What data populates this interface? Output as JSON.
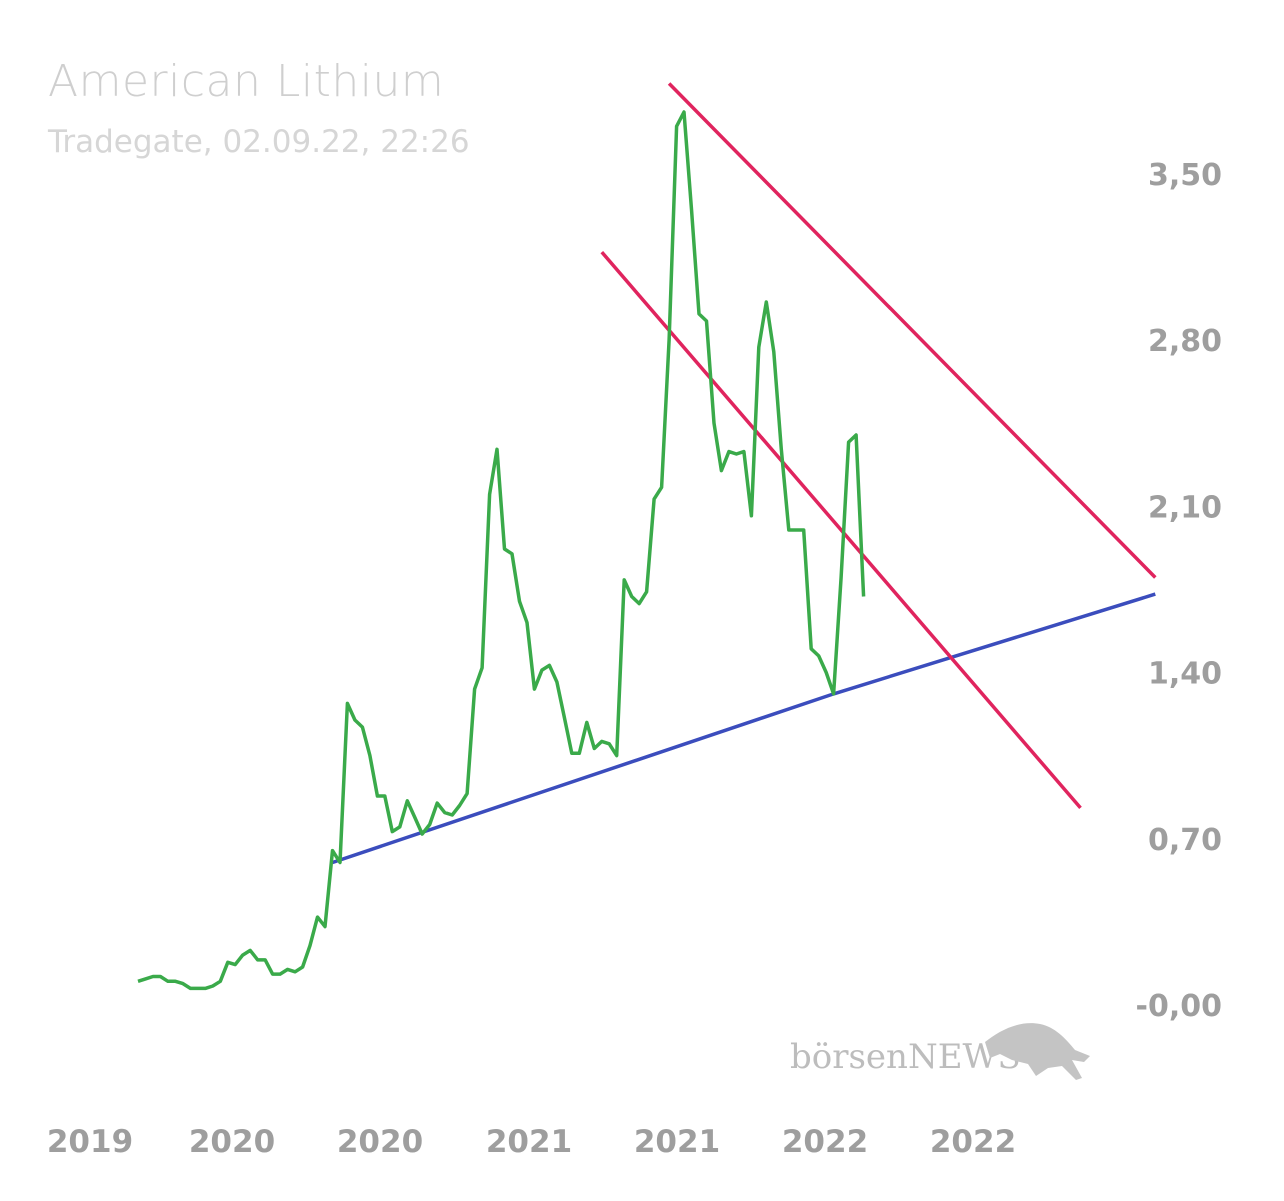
{
  "chart_data": {
    "type": "line",
    "title": "American Lithium",
    "subtitle": "Tradegate, 02.09.22, 22:26",
    "x_tick_labels": [
      "2019",
      "2020",
      "2020",
      "2021",
      "2021",
      "2022",
      "2022"
    ],
    "y_tick_labels": [
      "3,50",
      "2,80",
      "2,10",
      "1,40",
      "0,70",
      "-0,00"
    ],
    "y_tick_values": [
      3.5,
      2.8,
      2.1,
      1.4,
      0.7,
      0.0
    ],
    "ylim": [
      -0.3,
      4.0
    ],
    "series": [
      {
        "name": "American Lithium",
        "color": "#3aaa4a",
        "values": [
          0.1,
          0.11,
          0.12,
          0.12,
          0.1,
          0.1,
          0.09,
          0.07,
          0.07,
          0.07,
          0.08,
          0.1,
          0.18,
          0.17,
          0.21,
          0.23,
          0.19,
          0.19,
          0.13,
          0.13,
          0.15,
          0.14,
          0.16,
          0.25,
          0.37,
          0.33,
          0.65,
          0.6,
          1.27,
          1.2,
          1.17,
          1.05,
          0.88,
          0.88,
          0.73,
          0.75,
          0.86,
          0.79,
          0.72,
          0.76,
          0.85,
          0.81,
          0.8,
          0.84,
          0.89,
          1.33,
          1.42,
          2.15,
          2.34,
          1.92,
          1.9,
          1.7,
          1.61,
          1.33,
          1.41,
          1.43,
          1.36,
          1.21,
          1.06,
          1.06,
          1.19,
          1.08,
          1.11,
          1.1,
          1.05,
          1.79,
          1.72,
          1.69,
          1.74,
          2.13,
          2.18,
          2.8,
          3.7,
          3.76,
          3.35,
          2.91,
          2.88,
          2.45,
          2.25,
          2.33,
          2.32,
          2.33,
          2.06,
          2.77,
          2.96,
          2.75,
          2.34,
          2.0,
          2.0,
          2.0,
          1.5,
          1.47,
          1.4,
          1.31,
          1.8,
          2.37,
          2.4,
          1.72
        ]
      }
    ],
    "trend_lines": [
      {
        "name": "support",
        "color": "#3b4dbd",
        "points": [
          [
            26,
            0.6
          ],
          [
            93,
            1.31
          ],
          [
            136,
            1.73
          ]
        ]
      },
      {
        "name": "channel-upper",
        "color": "#e0245e",
        "points": [
          [
            71,
            3.88
          ],
          [
            136,
            1.8
          ]
        ]
      },
      {
        "name": "channel-lower",
        "color": "#e0245e",
        "points": [
          [
            62,
            3.17
          ],
          [
            126,
            0.83
          ]
        ]
      }
    ],
    "watermark": "börsenNEWS",
    "grid": false,
    "legend": "none"
  }
}
